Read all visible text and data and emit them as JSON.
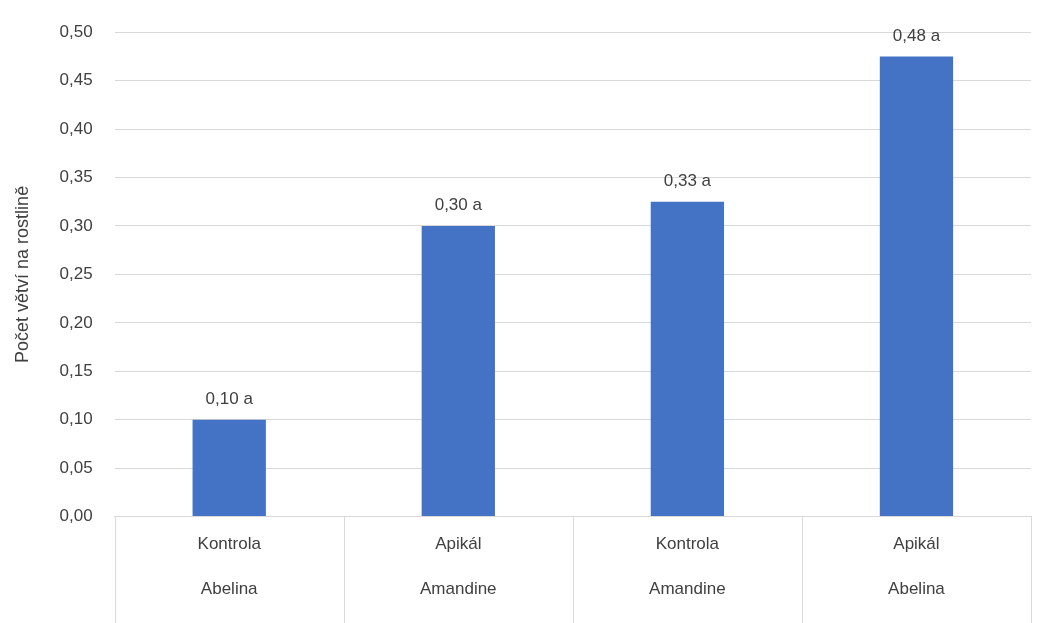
{
  "chart_data": {
    "type": "bar",
    "ylabel": "Počet větví na rostlině",
    "categories": [
      "Kontrola\nAbelina",
      "Apikál\nAmandine",
      "Kontrola\nAmandine",
      "Apikál\nAbelina"
    ],
    "values": [
      0.1,
      0.3,
      0.325,
      0.475
    ],
    "value_labels": [
      "0,10 a",
      "0,30 a",
      "0,33 a",
      "0,48 a"
    ],
    "color": "#4472c4",
    "ylim": [
      0,
      0.5
    ],
    "yticks": [
      {
        "value": 0,
        "label": "0,00"
      },
      {
        "value": 0.05,
        "label": "0,05"
      },
      {
        "value": 0.1,
        "label": "0,10"
      },
      {
        "value": 0.15,
        "label": "0,15"
      },
      {
        "value": 0.2,
        "label": "0,20"
      },
      {
        "value": 0.25,
        "label": "0,25"
      },
      {
        "value": 0.3,
        "label": "0,30"
      },
      {
        "value": 0.35,
        "label": "0,35"
      },
      {
        "value": 0.4,
        "label": "0,40"
      },
      {
        "value": 0.45,
        "label": "0,45"
      },
      {
        "value": 0.5,
        "label": "0,50"
      }
    ],
    "grid": "y"
  }
}
